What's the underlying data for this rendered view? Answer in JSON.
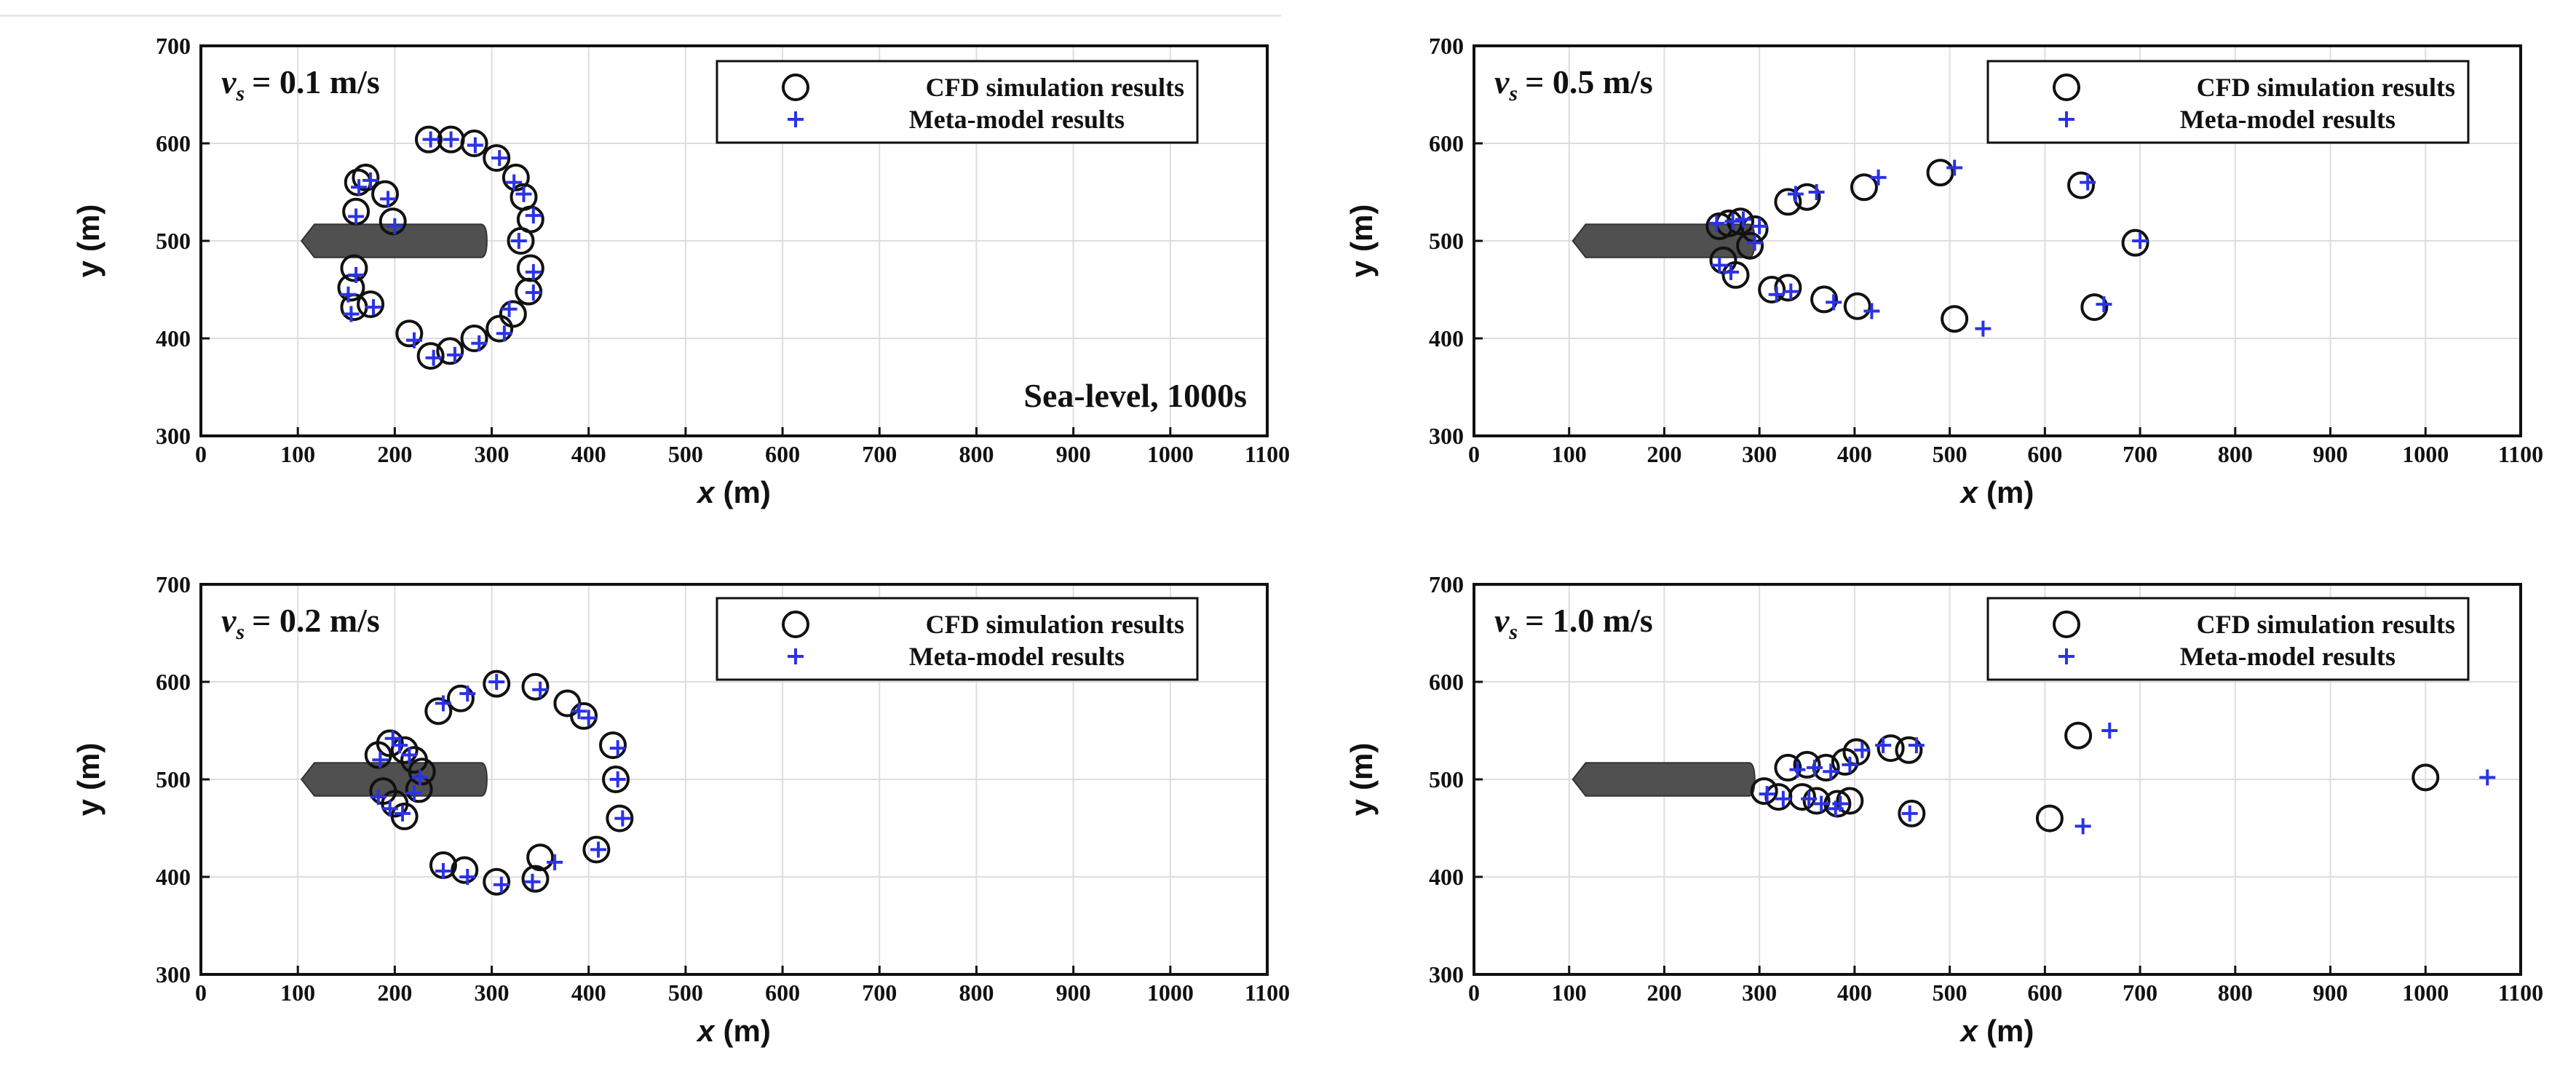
{
  "figure": {
    "legend": {
      "cfd_label": "CFD simulation results",
      "meta_label": "Meta-model results"
    },
    "colors": {
      "cfd": "#111111",
      "meta": "#2b32e6",
      "hull": "#505050",
      "grid": "#dddddd",
      "axis": "#111111"
    }
  },
  "chart_data": [
    {
      "type": "scatter",
      "panel": "top-left",
      "velocity_symbol": "v",
      "velocity_subscript": "s",
      "velocity_value": "= 0.1 m/s",
      "annotation": "Sea-level, 1000s",
      "xlabel_var": "x",
      "xlabel_unit": "(m)",
      "ylabel_var": "y",
      "ylabel_unit": "(m)",
      "xlim": [
        0,
        1100
      ],
      "ylim": [
        300,
        700
      ],
      "xticks": [
        0,
        100,
        200,
        300,
        400,
        500,
        600,
        700,
        800,
        900,
        1000,
        1100
      ],
      "yticks": [
        300,
        400,
        500,
        600,
        700
      ],
      "hull": {
        "x_start": 100,
        "x_end": 295,
        "y": 500,
        "half_width": 17
      },
      "series": [
        {
          "name": "CFD simulation results",
          "marker": "circle",
          "points": [
            [
              158,
              432
            ],
            [
              155,
              452
            ],
            [
              158,
              472
            ],
            [
              160,
              530
            ],
            [
              162,
              560
            ],
            [
              170,
              565
            ],
            [
              175,
              435
            ],
            [
              190,
              548
            ],
            [
              198,
              520
            ],
            [
              215,
              405
            ],
            [
              237,
              382
            ],
            [
              257,
              387
            ],
            [
              282,
              400
            ],
            [
              308,
              410
            ],
            [
              322,
              425
            ],
            [
              338,
              448
            ],
            [
              340,
              472
            ],
            [
              330,
              500
            ],
            [
              340,
              522
            ],
            [
              333,
              545
            ],
            [
              325,
              565
            ],
            [
              305,
              585
            ],
            [
              282,
              600
            ],
            [
              258,
              604
            ],
            [
              235,
              604
            ]
          ]
        },
        {
          "name": "Meta-model results",
          "marker": "plus",
          "points": [
            [
              155,
              425
            ],
            [
              152,
              445
            ],
            [
              160,
              465
            ],
            [
              160,
              525
            ],
            [
              163,
              555
            ],
            [
              175,
              562
            ],
            [
              178,
              432
            ],
            [
              193,
              543
            ],
            [
              200,
              515
            ],
            [
              220,
              398
            ],
            [
              240,
              380
            ],
            [
              262,
              383
            ],
            [
              287,
              395
            ],
            [
              313,
              405
            ],
            [
              318,
              430
            ],
            [
              343,
              447
            ],
            [
              343,
              468
            ],
            [
              328,
              500
            ],
            [
              343,
              526
            ],
            [
              333,
              548
            ],
            [
              323,
              560
            ],
            [
              308,
              585
            ],
            [
              283,
              598
            ],
            [
              258,
              604
            ],
            [
              237,
              604
            ]
          ]
        }
      ]
    },
    {
      "type": "scatter",
      "panel": "top-right",
      "velocity_symbol": "v",
      "velocity_subscript": "s",
      "velocity_value": "= 0.5 m/s",
      "xlabel_var": "x",
      "xlabel_unit": "(m)",
      "ylabel_var": "y",
      "ylabel_unit": "(m)",
      "xlim": [
        0,
        1100
      ],
      "ylim": [
        300,
        700
      ],
      "xticks": [
        0,
        100,
        200,
        300,
        400,
        500,
        600,
        700,
        800,
        900,
        1000,
        1100
      ],
      "yticks": [
        300,
        400,
        500,
        600,
        700
      ],
      "hull": {
        "x_start": 100,
        "x_end": 295,
        "y": 500,
        "half_width": 17
      },
      "series": [
        {
          "name": "CFD simulation results",
          "marker": "circle",
          "points": [
            [
              258,
              515
            ],
            [
              268,
              518
            ],
            [
              280,
              520
            ],
            [
              295,
              512
            ],
            [
              290,
              495
            ],
            [
              262,
              480
            ],
            [
              275,
              465
            ],
            [
              313,
              450
            ],
            [
              330,
              452
            ],
            [
              330,
              540
            ],
            [
              350,
              545
            ],
            [
              368,
              440
            ],
            [
              403,
              433
            ],
            [
              410,
              555
            ],
            [
              490,
              570
            ],
            [
              505,
              420
            ],
            [
              638,
              557
            ],
            [
              652,
              432
            ],
            [
              695,
              498
            ]
          ]
        },
        {
          "name": "Meta-model results",
          "marker": "plus",
          "points": [
            [
              255,
              518
            ],
            [
              272,
              520
            ],
            [
              283,
              522
            ],
            [
              300,
              515
            ],
            [
              295,
              498
            ],
            [
              258,
              475
            ],
            [
              270,
              468
            ],
            [
              318,
              445
            ],
            [
              333,
              448
            ],
            [
              338,
              548
            ],
            [
              360,
              550
            ],
            [
              378,
              437
            ],
            [
              418,
              428
            ],
            [
              425,
              565
            ],
            [
              505,
              575
            ],
            [
              535,
              410
            ],
            [
              645,
              560
            ],
            [
              662,
              435
            ],
            [
              700,
              500
            ]
          ]
        }
      ]
    },
    {
      "type": "scatter",
      "panel": "bottom-left",
      "velocity_symbol": "v",
      "velocity_subscript": "s",
      "velocity_value": "= 0.2 m/s",
      "xlabel_var": "x",
      "xlabel_unit": "(m)",
      "ylabel_var": "y",
      "ylabel_unit": "(m)",
      "xlim": [
        0,
        1100
      ],
      "ylim": [
        300,
        700
      ],
      "xticks": [
        0,
        100,
        200,
        300,
        400,
        500,
        600,
        700,
        800,
        900,
        1000,
        1100
      ],
      "yticks": [
        300,
        400,
        500,
        600,
        700
      ],
      "hull": {
        "x_start": 100,
        "x_end": 295,
        "y": 500,
        "half_width": 17
      },
      "series": [
        {
          "name": "CFD simulation results",
          "marker": "circle",
          "points": [
            [
              183,
              525
            ],
            [
              195,
              537
            ],
            [
              210,
              530
            ],
            [
              220,
              520
            ],
            [
              228,
              508
            ],
            [
              188,
              488
            ],
            [
              200,
              475
            ],
            [
              210,
              462
            ],
            [
              225,
              490
            ],
            [
              245,
              570
            ],
            [
              268,
              583
            ],
            [
              305,
              598
            ],
            [
              345,
              595
            ],
            [
              378,
              578
            ],
            [
              395,
              565
            ],
            [
              425,
              535
            ],
            [
              428,
              500
            ],
            [
              432,
              460
            ],
            [
              408,
              428
            ],
            [
              350,
              420
            ],
            [
              345,
              398
            ],
            [
              305,
              395
            ],
            [
              272,
              407
            ],
            [
              250,
              412
            ]
          ]
        },
        {
          "name": "Meta-model results",
          "marker": "plus",
          "points": [
            [
              185,
              520
            ],
            [
              198,
              542
            ],
            [
              205,
              535
            ],
            [
              215,
              525
            ],
            [
              226,
              502
            ],
            [
              183,
              482
            ],
            [
              195,
              470
            ],
            [
              208,
              465
            ],
            [
              220,
              486
            ],
            [
              250,
              578
            ],
            [
              275,
              588
            ],
            [
              305,
              600
            ],
            [
              350,
              592
            ],
            [
              390,
              570
            ],
            [
              400,
              563
            ],
            [
              430,
              532
            ],
            [
              430,
              500
            ],
            [
              435,
              460
            ],
            [
              410,
              428
            ],
            [
              365,
              415
            ],
            [
              342,
              395
            ],
            [
              310,
              392
            ],
            [
              275,
              400
            ],
            [
              250,
              406
            ]
          ]
        }
      ]
    },
    {
      "type": "scatter",
      "panel": "bottom-right",
      "velocity_symbol": "v",
      "velocity_subscript": "s",
      "velocity_value": "= 1.0 m/s",
      "xlabel_var": "x",
      "xlabel_unit": "(m)",
      "ylabel_var": "y",
      "ylabel_unit": "(m)",
      "xlim": [
        0,
        1100
      ],
      "ylim": [
        300,
        700
      ],
      "xticks": [
        0,
        100,
        200,
        300,
        400,
        500,
        600,
        700,
        800,
        900,
        1000,
        1100
      ],
      "yticks": [
        300,
        400,
        500,
        600,
        700
      ],
      "hull": {
        "x_start": 100,
        "x_end": 295,
        "y": 500,
        "half_width": 17
      },
      "series": [
        {
          "name": "CFD simulation results",
          "marker": "circle",
          "points": [
            [
              305,
              488
            ],
            [
              320,
              482
            ],
            [
              330,
              512
            ],
            [
              345,
              482
            ],
            [
              350,
              515
            ],
            [
              360,
              478
            ],
            [
              370,
              512
            ],
            [
              382,
              475
            ],
            [
              390,
              518
            ],
            [
              395,
              478
            ],
            [
              402,
              528
            ],
            [
              438,
              532
            ],
            [
              457,
              530
            ],
            [
              460,
              465
            ],
            [
              605,
              460
            ],
            [
              635,
              545
            ],
            [
              1000,
              502
            ]
          ]
        },
        {
          "name": "Meta-model results",
          "marker": "plus",
          "points": [
            [
              308,
              485
            ],
            [
              325,
              480
            ],
            [
              340,
              510
            ],
            [
              352,
              480
            ],
            [
              358,
              512
            ],
            [
              365,
              475
            ],
            [
              375,
              508
            ],
            [
              380,
              470
            ],
            [
              395,
              515
            ],
            [
              385,
              475
            ],
            [
              408,
              530
            ],
            [
              430,
              535
            ],
            [
              465,
              535
            ],
            [
              458,
              465
            ],
            [
              640,
              452
            ],
            [
              668,
              550
            ],
            [
              1065,
              502
            ]
          ]
        }
      ]
    }
  ]
}
